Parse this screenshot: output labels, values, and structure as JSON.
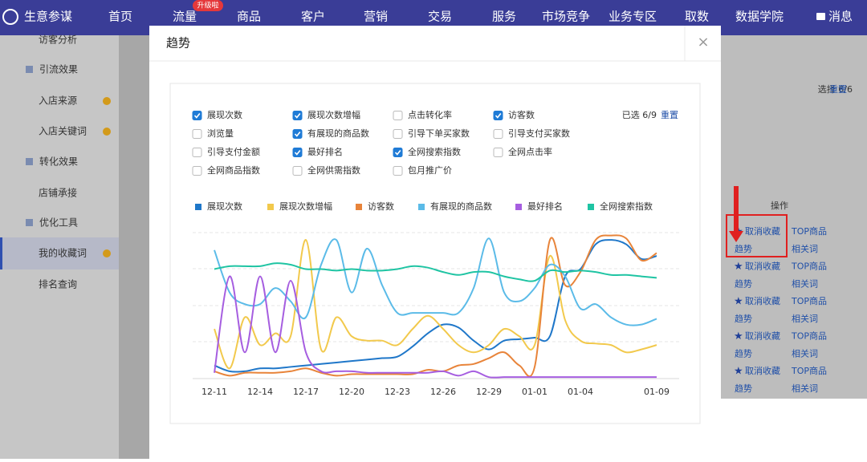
{
  "nav": {
    "logo": "生意参谋",
    "items": [
      "首页",
      "流量",
      "商品",
      "客户",
      "营销",
      "交易",
      "服务",
      "市场竞争",
      "业务专区",
      "取数",
      "数据学院"
    ],
    "active": 1,
    "badge": "升级啦",
    "message": "消息"
  },
  "sidebar": [
    {
      "label": "访客分析",
      "kind": "item"
    },
    {
      "label": "引流效果",
      "kind": "section"
    },
    {
      "label": "入店来源",
      "kind": "item",
      "dot": true
    },
    {
      "label": "入店关键词",
      "kind": "item",
      "dot": true
    },
    {
      "label": "转化效果",
      "kind": "section"
    },
    {
      "label": "店铺承接",
      "kind": "item"
    },
    {
      "label": "优化工具",
      "kind": "section"
    },
    {
      "label": "我的收藏词",
      "kind": "item",
      "dot": true,
      "active": true
    },
    {
      "label": "排名查询",
      "kind": "item"
    }
  ],
  "background": {
    "select_count": "选择 6/6",
    "reset": "重置",
    "op_header": "操作",
    "rows": [
      {
        "cancel": "取消收藏",
        "top": "TOP商品",
        "trend": "趋势",
        "related": "相关词"
      },
      {
        "cancel": "取消收藏",
        "top": "TOP商品",
        "trend": "趋势",
        "related": "相关词"
      },
      {
        "cancel": "取消收藏",
        "top": "TOP商品",
        "trend": "趋势",
        "related": "相关词"
      },
      {
        "cancel": "取消收藏",
        "top": "TOP商品",
        "trend": "趋势",
        "related": "相关词"
      },
      {
        "cancel": "取消收藏",
        "top": "TOP商品",
        "trend": "趋势",
        "related": "相关词"
      }
    ]
  },
  "modal": {
    "title": "趋势",
    "selected": "已选 6/9",
    "reset": "重置",
    "metrics": [
      {
        "label": "展现次数",
        "checked": true
      },
      {
        "label": "展现次数增幅",
        "checked": true
      },
      {
        "label": "点击转化率",
        "checked": false
      },
      {
        "label": "访客数",
        "checked": true
      },
      {
        "label": "浏览量",
        "checked": false
      },
      {
        "label": "有展现的商品数",
        "checked": true
      },
      {
        "label": "引导下单买家数",
        "checked": false
      },
      {
        "label": "引导支付买家数",
        "checked": false
      },
      {
        "label": "引导支付金额",
        "checked": false
      },
      {
        "label": "最好排名",
        "checked": true
      },
      {
        "label": "全网搜索指数",
        "checked": true
      },
      {
        "label": "全网点击率",
        "checked": false
      },
      {
        "label": "全网商品指数",
        "checked": false
      },
      {
        "label": "全网供需指数",
        "checked": false
      },
      {
        "label": "包月推广价",
        "checked": false
      }
    ]
  },
  "chart_data": {
    "type": "line",
    "categories": [
      "12-11",
      null,
      null,
      "12-14",
      null,
      null,
      "12-17",
      null,
      null,
      "12-20",
      null,
      null,
      "12-23",
      null,
      null,
      "12-26",
      null,
      null,
      "12-29",
      null,
      null,
      "01-01",
      null,
      null,
      "01-04",
      null,
      null,
      null,
      null,
      "01-09"
    ],
    "ylim": [
      0,
      100
    ],
    "series": [
      {
        "name": "展现次数",
        "color": "#1f77c9",
        "values": [
          9,
          5,
          5,
          7,
          7,
          8,
          9,
          10,
          11,
          12,
          13,
          14,
          15,
          22,
          31,
          37,
          35,
          26,
          20,
          26,
          27,
          28,
          29,
          70,
          75,
          92,
          95,
          92,
          82,
          84
        ]
      },
      {
        "name": "展现次数增幅",
        "color": "#f2c94c",
        "values": [
          34,
          7,
          42,
          23,
          31,
          29,
          95,
          20,
          42,
          29,
          26,
          26,
          23,
          34,
          43,
          34,
          23,
          18,
          23,
          34,
          29,
          23,
          84,
          40,
          26,
          24,
          23,
          18,
          20,
          23
        ]
      },
      {
        "name": "访客数",
        "color": "#e8843a",
        "values": [
          5,
          2,
          4,
          4,
          4,
          5,
          7,
          4,
          2,
          3,
          3,
          3,
          3,
          3,
          6,
          5,
          9,
          10,
          14,
          18,
          9,
          8,
          95,
          64,
          73,
          95,
          98,
          96,
          81,
          86
        ]
      },
      {
        "name": "有展现的商品数",
        "color": "#5bbbe8",
        "values": [
          88,
          59,
          51,
          51,
          62,
          53,
          42,
          78,
          95,
          59,
          89,
          64,
          45,
          45,
          45,
          45,
          45,
          62,
          96,
          59,
          53,
          62,
          78,
          70,
          48,
          51,
          42,
          37,
          37,
          41
        ]
      },
      {
        "name": "最好排名",
        "color": "#a65ee0",
        "values": [
          4,
          70,
          18,
          70,
          18,
          67,
          18,
          5,
          5,
          5,
          4,
          4,
          4,
          4,
          4,
          5,
          2,
          5,
          1,
          1,
          1,
          1,
          1,
          1,
          1,
          1,
          1,
          1,
          1,
          1
        ]
      },
      {
        "name": "全网搜索指数",
        "color": "#1fc4a3",
        "values": [
          75,
          77,
          77,
          77,
          79,
          78,
          75,
          75,
          74,
          75,
          74,
          74,
          75,
          77,
          76,
          73,
          71,
          73,
          73,
          70,
          68,
          67,
          74,
          73,
          74,
          73,
          71,
          71,
          70,
          69
        ]
      }
    ]
  }
}
